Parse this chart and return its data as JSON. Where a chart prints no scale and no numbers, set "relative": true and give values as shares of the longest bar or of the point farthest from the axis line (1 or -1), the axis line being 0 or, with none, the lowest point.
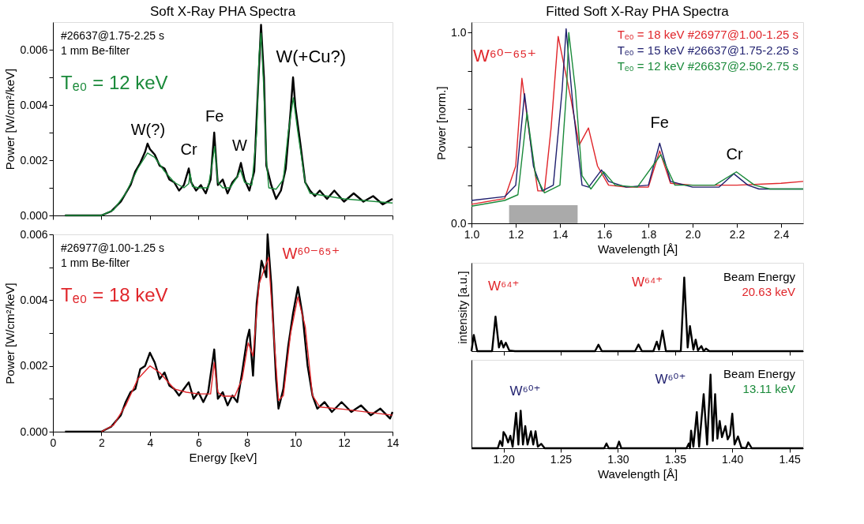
{
  "chart_data": [
    {
      "type": "line",
      "title": "Soft X-Ray PHA Spectra",
      "ylabel": "Power [W/cm²/keV]",
      "xlim": [
        0,
        14
      ],
      "ylim": [
        0,
        0.007
      ],
      "xticks": [
        0,
        2,
        4,
        6,
        8,
        10,
        12,
        14
      ],
      "yticks": [
        {
          "value": 0,
          "label": "0.000"
        },
        {
          "value": 0.001,
          "label": null
        },
        {
          "value": 0.002,
          "label": "0.002"
        },
        {
          "value": 0.003,
          "label": null
        },
        {
          "value": 0.004,
          "label": "0.004"
        },
        {
          "value": 0.005,
          "label": null
        },
        {
          "value": 0.006,
          "label": "0.006"
        }
      ],
      "tick_labels": "y",
      "legend": "top left",
      "series": [
        {
          "color": "#000000",
          "x": [
            0.5,
            1.0,
            1.5,
            2.0,
            2.4,
            2.8,
            3.0,
            3.2,
            3.4,
            3.6,
            3.8,
            3.9,
            4.0,
            4.2,
            4.4,
            4.6,
            4.8,
            5.0,
            5.2,
            5.4,
            5.6,
            5.7,
            5.9,
            6.1,
            6.3,
            6.5,
            6.65,
            6.8,
            7.0,
            7.2,
            7.4,
            7.6,
            7.75,
            7.9,
            8.1,
            8.3,
            8.45,
            8.58,
            8.7,
            8.8,
            9.0,
            9.2,
            9.4,
            9.6,
            9.8,
            9.9,
            10.0,
            10.2,
            10.4,
            10.6,
            10.8,
            11.0,
            11.3,
            11.6,
            12.0,
            12.4,
            12.8,
            13.2,
            13.6,
            14.0
          ],
          "values": [
            0,
            0,
            0,
            0,
            0.00015,
            0.0005,
            0.0008,
            0.0011,
            0.0016,
            0.0019,
            0.0023,
            0.0026,
            0.0024,
            0.0022,
            0.0018,
            0.0017,
            0.0013,
            0.0012,
            0.0009,
            0.0011,
            0.0017,
            0.0012,
            0.0009,
            0.0011,
            0.0008,
            0.0013,
            0.003,
            0.0011,
            0.0013,
            0.0008,
            0.0012,
            0.0014,
            0.0019,
            0.0013,
            0.0009,
            0.0016,
            0.0045,
            0.0069,
            0.005,
            0.0018,
            0.0011,
            0.0006,
            0.0009,
            0.0017,
            0.0038,
            0.005,
            0.0039,
            0.0026,
            0.0012,
            0.0009,
            0.0007,
            0.0009,
            0.0006,
            0.0009,
            0.0005,
            0.0008,
            0.0005,
            0.0007,
            0.0004,
            0.0006
          ]
        },
        {
          "name": "Tₑ₀ = 12 keV",
          "color": "#1a8a3a",
          "x": [
            0.5,
            1.5,
            2.0,
            2.5,
            3.0,
            3.5,
            3.9,
            4.2,
            4.6,
            5.0,
            5.4,
            5.6,
            5.65,
            5.75,
            6.0,
            6.4,
            6.55,
            6.67,
            6.8,
            7.0,
            7.3,
            7.6,
            7.73,
            7.9,
            8.2,
            8.4,
            8.5,
            8.58,
            8.7,
            8.8,
            8.9,
            9.2,
            9.5,
            9.7,
            9.91,
            10.1,
            10.4,
            10.6,
            12.0,
            14.0
          ],
          "values": [
            0,
            0,
            0,
            0.0002,
            0.0008,
            0.0017,
            0.00226,
            0.0021,
            0.0016,
            0.0012,
            0.001,
            0.00115,
            0.00152,
            0.00105,
            0.001,
            0.001,
            0.0018,
            0.0025,
            0.0012,
            0.001,
            0.001,
            0.0014,
            0.00165,
            0.0012,
            0.0011,
            0.003,
            0.0058,
            0.0066,
            0.0045,
            0.002,
            0.001,
            0.00095,
            0.0013,
            0.003,
            0.00426,
            0.003,
            0.0012,
            0.0008,
            0.0006,
            0.00045
          ]
        }
      ],
      "annotations": [
        "#26637@1.75-2.25 s",
        "1 mm Be-filter",
        "W(?)",
        "Cr",
        "Fe",
        "W",
        "W(+Cu?)"
      ]
    },
    {
      "type": "line",
      "xlabel": "Energy [keV]",
      "ylabel": "Power [W/cm²/keV]",
      "xlim": [
        0,
        14
      ],
      "ylim": [
        0,
        0.006
      ],
      "xticks": [
        0,
        2,
        4,
        6,
        8,
        10,
        12,
        14
      ],
      "yticks": [
        {
          "value": 0,
          "label": "0.000"
        },
        {
          "value": 0.001,
          "label": null
        },
        {
          "value": 0.002,
          "label": "0.002"
        },
        {
          "value": 0.003,
          "label": null
        },
        {
          "value": 0.004,
          "label": "0.004"
        },
        {
          "value": 0.005,
          "label": null
        },
        {
          "value": 0.006,
          "label": "0.006"
        }
      ],
      "legend": "top left",
      "series": [
        {
          "color": "#000000",
          "x": [
            0.5,
            1.0,
            1.5,
            2.0,
            2.4,
            2.8,
            3.0,
            3.2,
            3.4,
            3.6,
            3.8,
            4.0,
            4.2,
            4.4,
            4.6,
            4.8,
            5.0,
            5.2,
            5.4,
            5.6,
            5.8,
            6.0,
            6.2,
            6.4,
            6.65,
            6.8,
            7.0,
            7.2,
            7.4,
            7.6,
            7.8,
            8.0,
            8.1,
            8.25,
            8.4,
            8.6,
            8.8,
            8.85,
            9.0,
            9.2,
            9.3,
            9.5,
            9.7,
            9.9,
            10.1,
            10.3,
            10.5,
            10.7,
            10.9,
            11.2,
            11.5,
            11.9,
            12.3,
            12.7,
            13.1,
            13.5,
            13.9,
            14.0
          ],
          "values": [
            0,
            0,
            0,
            0,
            0.00015,
            0.0005,
            0.0009,
            0.0012,
            0.0013,
            0.0019,
            0.002,
            0.0024,
            0.0021,
            0.0016,
            0.0018,
            0.0014,
            0.0013,
            0.0011,
            0.0013,
            0.0015,
            0.001,
            0.0012,
            0.0009,
            0.0012,
            0.0025,
            0.001,
            0.0012,
            0.0008,
            0.0011,
            0.0009,
            0.0018,
            0.0028,
            0.0031,
            0.0017,
            0.0039,
            0.0052,
            0.0047,
            0.006,
            0.0045,
            0.0016,
            0.0007,
            0.0013,
            0.0026,
            0.0036,
            0.0044,
            0.0035,
            0.002,
            0.0011,
            0.0007,
            0.0009,
            0.0006,
            0.0009,
            0.0006,
            0.0008,
            0.0005,
            0.0007,
            0.0004,
            0.0006
          ]
        },
        {
          "name": "Tₑ₀ = 18 keV",
          "color": "#e0262b",
          "x": [
            2.0,
            2.5,
            3.0,
            3.5,
            4.0,
            4.4,
            5.0,
            5.5,
            6.0,
            6.5,
            6.65,
            6.8,
            7.0,
            7.5,
            7.8,
            8.05,
            8.25,
            8.5,
            8.89,
            9.1,
            9.3,
            9.5,
            9.8,
            10.1,
            10.4,
            10.7,
            11.0,
            12.0,
            14.0
          ],
          "values": [
            0,
            0.0002,
            0.0008,
            0.0016,
            0.002,
            0.0018,
            0.0013,
            0.0012,
            0.00115,
            0.00115,
            0.0021,
            0.0012,
            0.00108,
            0.00108,
            0.0016,
            0.0027,
            0.0023,
            0.0045,
            0.0053,
            0.003,
            0.00095,
            0.0011,
            0.003,
            0.0041,
            0.0032,
            0.0011,
            0.00075,
            0.00068,
            0.0005
          ]
        }
      ],
      "annotations": [
        "#26977@1.00-1.25 s",
        "1 mm Be-filter",
        "W⁶⁰⁻⁶⁵⁺"
      ]
    },
    {
      "type": "line",
      "title": "Fitted Soft X-Ray PHA Spectra",
      "xlabel": "Wavelength [Å]",
      "ylabel": "Power [norm.]",
      "xlim": [
        1.0,
        2.5
      ],
      "ylim": [
        0,
        1.055
      ],
      "xticks": [
        {
          "value": 1.0,
          "label": "1.0"
        },
        1.2,
        1.4,
        1.6,
        1.8,
        {
          "value": 2.0,
          "label": "2.0"
        },
        2.2,
        2.4
      ],
      "yticks": [
        {
          "value": 0,
          "label": "0.0"
        },
        {
          "value": 0.2,
          "label": null
        },
        {
          "value": 0.4,
          "label": null
        },
        {
          "value": 0.6,
          "label": null
        },
        {
          "value": 0.8,
          "label": null
        },
        {
          "value": 1.0,
          "label": "1.0"
        }
      ],
      "legend": "top right",
      "series": [
        {
          "name": "Tₑ₀ = 18 keV  #26977@1.00-1.25 s",
          "color": "#e0262b",
          "x": [
            1.0,
            1.15,
            1.2,
            1.228,
            1.27,
            1.3,
            1.33,
            1.36,
            1.392,
            1.42,
            1.45,
            1.487,
            1.529,
            1.57,
            1.62,
            1.7,
            1.8,
            1.851,
            1.9,
            2.0,
            2.2,
            2.4,
            2.5
          ],
          "values": [
            0.1,
            0.13,
            0.3,
            0.76,
            0.4,
            0.17,
            0.17,
            0.5,
            0.98,
            0.82,
            0.65,
            0.41,
            0.5,
            0.3,
            0.2,
            0.19,
            0.19,
            0.38,
            0.21,
            0.2,
            0.2,
            0.21,
            0.22
          ]
        },
        {
          "name": "Tₑ₀ = 15 keV  #26637@1.75-2.25 s",
          "color": "#1f1f6e",
          "x": [
            1.0,
            1.15,
            1.2,
            1.24,
            1.28,
            1.32,
            1.37,
            1.41,
            1.428,
            1.46,
            1.5,
            1.53,
            1.588,
            1.62,
            1.7,
            1.8,
            1.851,
            1.9,
            2.0,
            2.12,
            2.186,
            2.25,
            2.3,
            2.5
          ],
          "values": [
            0.12,
            0.14,
            0.2,
            0.68,
            0.3,
            0.17,
            0.2,
            0.7,
            1.02,
            0.6,
            0.2,
            0.19,
            0.28,
            0.22,
            0.19,
            0.2,
            0.42,
            0.22,
            0.19,
            0.19,
            0.26,
            0.2,
            0.18,
            0.18
          ]
        },
        {
          "name": "Tₑ₀ = 12 keV  #26637@2.50-2.75 s",
          "color": "#1a8a3a",
          "x": [
            1.0,
            1.15,
            1.21,
            1.251,
            1.29,
            1.33,
            1.4,
            1.43,
            1.44,
            1.47,
            1.5,
            1.54,
            1.598,
            1.65,
            1.75,
            1.856,
            1.92,
            2.1,
            2.198,
            2.28,
            2.35,
            2.5
          ],
          "values": [
            0.09,
            0.12,
            0.15,
            0.58,
            0.25,
            0.16,
            0.2,
            0.7,
            1.0,
            0.7,
            0.25,
            0.18,
            0.27,
            0.2,
            0.19,
            0.36,
            0.2,
            0.2,
            0.27,
            0.2,
            0.18,
            0.18
          ]
        }
      ],
      "bands": [
        {
          "axis": "x",
          "from": 1.17,
          "to": 1.48,
          "color": "#aaaaaa"
        }
      ],
      "annotations": [
        "W⁶⁰⁻⁶⁵⁺",
        "Fe",
        "Cr"
      ]
    },
    {
      "type": "line",
      "relative": true,
      "ylabel": "intensity [a.u.]",
      "xlim": [
        1.172,
        1.462
      ],
      "tick_labels": false,
      "xticks": [
        {
          "value": 1.2,
          "label": null
        },
        {
          "value": 1.25,
          "label": null
        },
        {
          "value": 1.3,
          "label": null
        },
        {
          "value": 1.35,
          "label": null
        },
        {
          "value": 1.4,
          "label": null
        },
        {
          "value": 1.45,
          "label": null
        }
      ],
      "series": [
        {
          "color": "#000000",
          "x": [
            1.172,
            1.174,
            1.177,
            1.19,
            1.193,
            1.196,
            1.198,
            1.2,
            1.202,
            1.205,
            1.21,
            1.28,
            1.283,
            1.286,
            1.315,
            1.318,
            1.321,
            1.331,
            1.334,
            1.336,
            1.339,
            1.342,
            1.355,
            1.358,
            1.361,
            1.363,
            1.366,
            1.368,
            1.37,
            1.373,
            1.375,
            1.377,
            1.38,
            1.462
          ],
          "values": [
            0,
            0.22,
            0,
            0,
            0.47,
            0.05,
            0.14,
            0.05,
            0.115,
            0.01,
            0,
            0,
            0.087,
            0,
            0,
            0.09,
            0,
            0,
            0.13,
            0.02,
            0.28,
            0,
            0,
            1.0,
            0.05,
            0.34,
            0.02,
            0.157,
            0.01,
            0.07,
            0,
            0.035,
            0,
            0
          ]
        }
      ],
      "annotations": [
        "W⁶⁴⁺",
        "W⁶⁴⁺",
        "Beam Energy",
        "20.63 keV"
      ]
    },
    {
      "type": "line",
      "relative": true,
      "xlabel": "Wavelength [Å]",
      "xlim": [
        1.172,
        1.462
      ],
      "tick_labels": "x",
      "xticks": [
        {
          "value": 1.2,
          "label": "1.20"
        },
        1.25,
        {
          "value": 1.3,
          "label": "1.30"
        },
        1.35,
        {
          "value": 1.4,
          "label": "1.40"
        },
        1.45
      ],
      "series": [
        {
          "color": "#000000",
          "x": [
            1.172,
            1.195,
            1.197,
            1.199,
            1.2,
            1.202,
            1.204,
            1.206,
            1.208,
            1.211,
            1.213,
            1.215,
            1.217,
            1.219,
            1.221,
            1.224,
            1.226,
            1.228,
            1.23,
            1.233,
            1.236,
            1.288,
            1.29,
            1.292,
            1.299,
            1.301,
            1.303,
            1.36,
            1.362,
            1.363,
            1.364,
            1.366,
            1.369,
            1.371,
            1.375,
            1.378,
            1.381,
            1.383,
            1.385,
            1.387,
            1.389,
            1.391,
            1.394,
            1.396,
            1.398,
            1.4,
            1.402,
            1.405,
            1.408,
            1.412,
            1.414,
            1.417,
            1.462
          ],
          "values": [
            0,
            0,
            0.1,
            0.03,
            0.22,
            0.17,
            0.08,
            0.17,
            0.02,
            0.48,
            0.05,
            0.51,
            0.05,
            0.3,
            0.05,
            0.23,
            0.05,
            0.23,
            0.02,
            0.06,
            0,
            0,
            0.065,
            0,
            0,
            0.09,
            0,
            0,
            0.065,
            0,
            0.24,
            0.02,
            0.49,
            0.02,
            0.735,
            0.05,
            1.0,
            0.1,
            0.735,
            0.13,
            0.37,
            0.15,
            0.3,
            0.12,
            0.18,
            0.47,
            0.05,
            0.16,
            0.01,
            0,
            0.08,
            0,
            0
          ]
        }
      ],
      "annotations": [
        "W⁶⁰⁺",
        "W⁶⁰⁺",
        "Beam Energy",
        "13.11 keV"
      ]
    }
  ]
}
